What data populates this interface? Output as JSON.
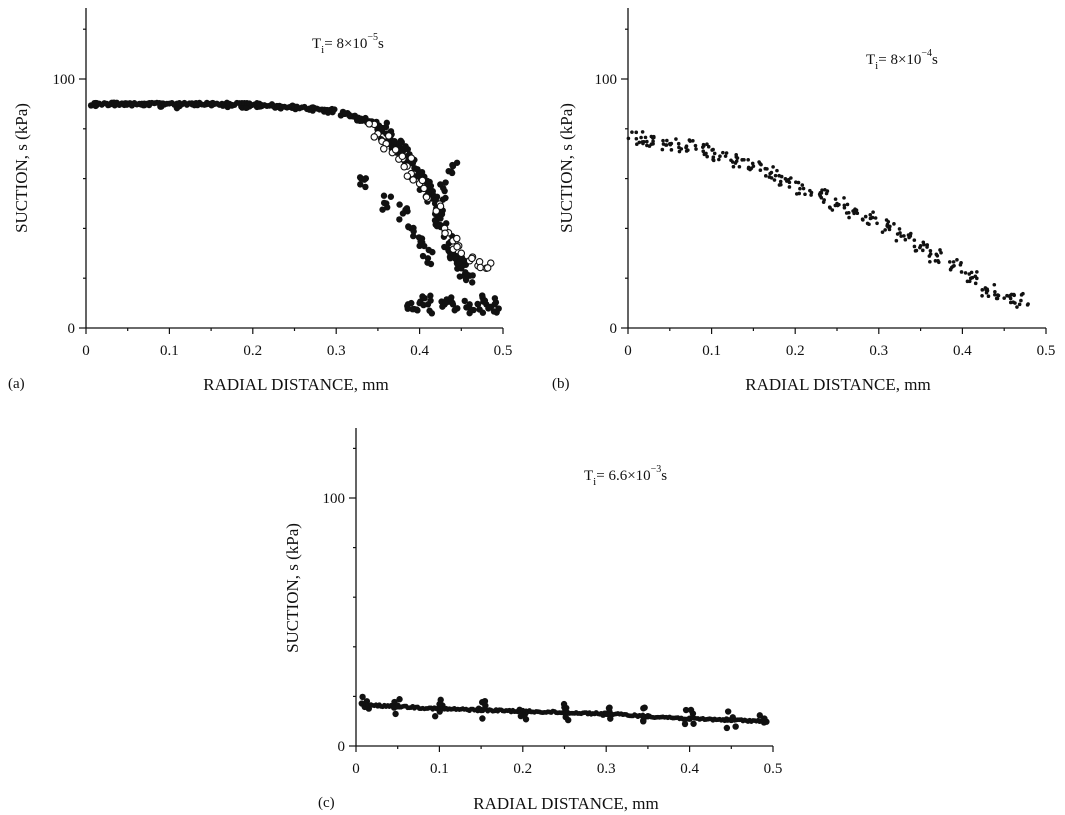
{
  "chart_data": [
    {
      "panel": "(a)",
      "type": "scatter",
      "xlabel": "RADIAL DISTANCE, mm",
      "ylabel": "SUCTION, s (kPa)",
      "xlim": [
        0,
        0.5
      ],
      "ylim": [
        0,
        100
      ],
      "xticks": [
        0,
        0.1,
        0.2,
        0.3,
        0.4,
        0.5
      ],
      "xtick_labels": [
        "0",
        "0.1",
        "0.2",
        "0.3",
        "0.4",
        "0.5"
      ],
      "yticks": [
        0,
        100
      ],
      "ytick_labels": [
        "0",
        "100"
      ],
      "grid": false,
      "annotation": {
        "prefix": "T",
        "sub": "i",
        "mid": "= 8×10",
        "sup": "−5",
        "suffix": "s"
      },
      "series": [
        {
          "marker": "filled-circle",
          "x": [
            0.01,
            0.03,
            0.05,
            0.07,
            0.09,
            0.11,
            0.13,
            0.15,
            0.17,
            0.19,
            0.21,
            0.23,
            0.25,
            0.27,
            0.29,
            0.31,
            0.32,
            0.33,
            0.34,
            0.345,
            0.35,
            0.355,
            0.36,
            0.365,
            0.37,
            0.375,
            0.38,
            0.385,
            0.39,
            0.395,
            0.4,
            0.405,
            0.41,
            0.415,
            0.42,
            0.425,
            0.43,
            0.435,
            0.44,
            0.445,
            0.45,
            0.455,
            0.46,
            0.33,
            0.36,
            0.38,
            0.39,
            0.4,
            0.41,
            0.42,
            0.43,
            0.44,
            0.45,
            0.39,
            0.4,
            0.41,
            0.43,
            0.44,
            0.46,
            0.47,
            0.48,
            0.49
          ],
          "y": [
            90,
            90,
            90,
            89.5,
            89.5,
            89,
            89.5,
            90,
            89.5,
            89,
            89.5,
            89,
            88.5,
            88,
            87,
            86,
            85,
            84,
            83,
            82,
            81,
            79,
            78,
            76,
            75,
            73,
            71,
            69,
            67,
            64,
            62,
            59,
            56,
            52,
            48,
            44,
            39,
            34,
            30,
            27,
            24,
            22,
            21,
            60,
            50,
            46,
            40,
            33,
            28,
            43,
            55,
            65,
            25,
            10,
            10,
            9.5,
            9.5,
            9.5,
            9.5,
            9.5,
            9.5,
            9.5
          ]
        },
        {
          "marker": "open-circle",
          "x": [
            0.34,
            0.35,
            0.36,
            0.37,
            0.38,
            0.385,
            0.39,
            0.4,
            0.41,
            0.42,
            0.43,
            0.44,
            0.45,
            0.46,
            0.47,
            0.48
          ],
          "y": [
            82,
            78,
            74,
            71,
            68,
            65,
            62,
            58,
            52,
            47,
            40,
            35,
            30,
            27,
            25,
            24
          ]
        }
      ]
    },
    {
      "panel": "(b)",
      "type": "scatter",
      "xlabel": "RADIAL DISTANCE, mm",
      "ylabel": "SUCTION, s (kPa)",
      "xlim": [
        0,
        0.5
      ],
      "ylim": [
        0,
        100
      ],
      "xticks": [
        0,
        0.1,
        0.2,
        0.3,
        0.4,
        0.5
      ],
      "xtick_labels": [
        "0",
        "0.1",
        "0.2",
        "0.3",
        "0.4",
        "0.5"
      ],
      "yticks": [
        0,
        100
      ],
      "ytick_labels": [
        "0",
        "100"
      ],
      "grid": false,
      "annotation": {
        "prefix": "T",
        "sub": "i",
        "mid": "= 8×10",
        "sup": "−4",
        "suffix": "s"
      },
      "series": [
        {
          "marker": "small-dot",
          "x": [
            0.01,
            0.03,
            0.05,
            0.07,
            0.09,
            0.11,
            0.13,
            0.15,
            0.17,
            0.19,
            0.21,
            0.23,
            0.25,
            0.27,
            0.29,
            0.31,
            0.33,
            0.35,
            0.37,
            0.39,
            0.41,
            0.43,
            0.45,
            0.47
          ],
          "y": [
            76,
            75,
            74,
            73,
            71,
            69,
            67,
            65,
            62,
            59,
            56,
            53,
            50,
            47,
            44,
            41,
            37,
            33,
            29,
            25,
            20,
            15,
            12,
            11
          ]
        }
      ]
    },
    {
      "panel": "(c)",
      "type": "scatter",
      "xlabel": "RADIAL DISTANCE, mm",
      "ylabel": "SUCTION, s (kPa)",
      "xlim": [
        0,
        0.5
      ],
      "ylim": [
        0,
        100
      ],
      "xticks": [
        0,
        0.1,
        0.2,
        0.3,
        0.4,
        0.5
      ],
      "xtick_labels": [
        "0",
        "0.1",
        "0.2",
        "0.3",
        "0.4",
        "0.5"
      ],
      "yticks": [
        0,
        100
      ],
      "ytick_labels": [
        "0",
        "100"
      ],
      "grid": false,
      "annotation": {
        "prefix": "T",
        "sub": "i",
        "mid": "= 6.6×10",
        "sup": "−3",
        "suffix": "s"
      },
      "series": [
        {
          "marker": "filled-circle",
          "x": [
            0.01,
            0.05,
            0.1,
            0.15,
            0.2,
            0.25,
            0.3,
            0.35,
            0.4,
            0.45,
            0.49
          ],
          "y": [
            16.5,
            16,
            15,
            14.5,
            14,
            13.5,
            13,
            12,
            11,
            10.5,
            10
          ]
        }
      ]
    }
  ]
}
